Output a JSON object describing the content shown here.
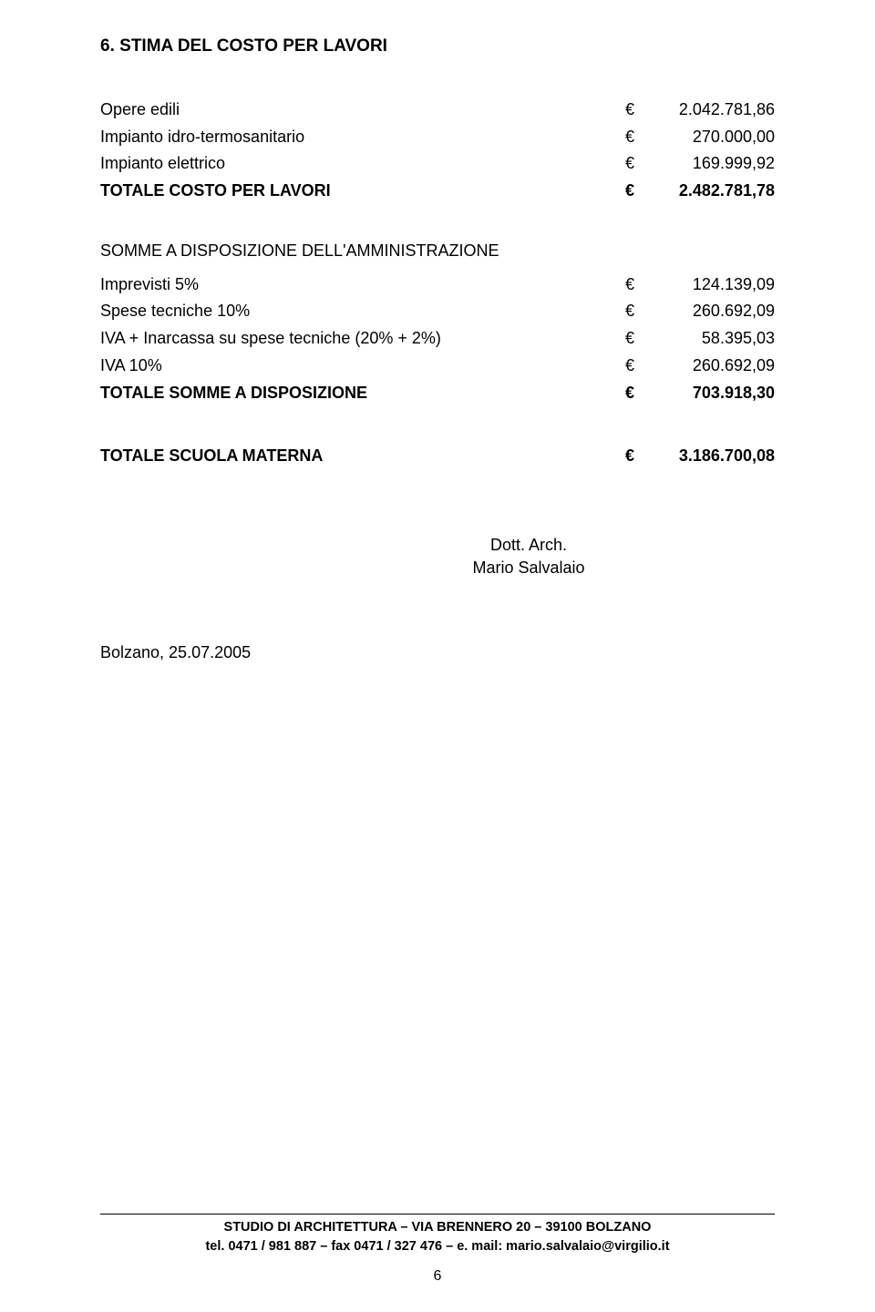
{
  "section": {
    "number": "6.",
    "title": "STIMA DEL COSTO PER LAVORI"
  },
  "currency": "€",
  "costo_lavori": {
    "rows": [
      {
        "label": "Opere edili",
        "value": "2.042.781,86",
        "bold": false
      },
      {
        "label": "Impianto idro-termosanitario",
        "value": "270.000,00",
        "bold": false
      },
      {
        "label": "Impianto elettrico",
        "value": "169.999,92",
        "bold": false
      },
      {
        "label": "TOTALE COSTO PER LAVORI",
        "value": "2.482.781,78",
        "bold": true
      }
    ]
  },
  "somme_heading": "SOMME A DISPOSIZIONE DELL'AMMINISTRAZIONE",
  "somme": {
    "rows": [
      {
        "label": "Imprevisti 5%",
        "value": "124.139,09",
        "bold": false
      },
      {
        "label": "Spese tecniche 10%",
        "value": "260.692,09",
        "bold": false
      },
      {
        "label": "IVA + Inarcassa su spese tecniche (20% + 2%)",
        "value": "58.395,03",
        "bold": false
      },
      {
        "label": "IVA 10%",
        "value": "260.692,09",
        "bold": false
      },
      {
        "label": "TOTALE SOMME A DISPOSIZIONE",
        "value": "703.918,30",
        "bold": true
      }
    ]
  },
  "totale_scuola": {
    "label": "TOTALE SCUOLA MATERNA",
    "value": "3.186.700,08"
  },
  "signature": {
    "line1": "Dott. Arch.",
    "line2": "Mario Salvalaio"
  },
  "date": "Bolzano, 25.07.2005",
  "footer": {
    "line1": "STUDIO DI ARCHITETTURA – VIA BRENNERO 20 – 39100 BOLZANO",
    "line2": "tel. 0471 / 981 887 – fax 0471 / 327 476 – e. mail: mario.salvalaio@virgilio.it"
  },
  "page_number": "6"
}
